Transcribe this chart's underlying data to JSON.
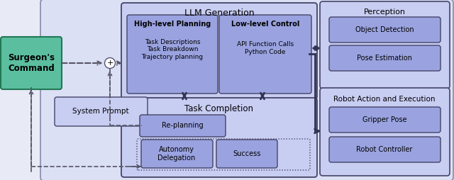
{
  "fig_width": 6.4,
  "fig_height": 2.54,
  "dpi": 100,
  "bg_outer": "#e8eaf6",
  "bg_main": "#dce0f5",
  "bg_llm": "#c8cdf2",
  "bg_hlp": "#9aa3e0",
  "bg_llc": "#9aa3e0",
  "bg_task": "#c8cdf2",
  "bg_replanning": "#9aa3e0",
  "bg_autonomy": "#9aa3e0",
  "bg_success": "#9aa3e0",
  "bg_perception": "#c8cdf2",
  "bg_obj_det": "#9aa3e0",
  "bg_pose_est": "#9aa3e0",
  "bg_robot_action": "#c8cdf2",
  "bg_gripper": "#9aa3e0",
  "bg_robot_ctrl": "#9aa3e0",
  "bg_surgeon": "#5bbf9f",
  "bg_sys_prompt": "#c8cdf2",
  "ec_dark": "#444466",
  "ec_mid": "#666688",
  "ec_surgeon": "#227755",
  "arrow_solid": "#333355",
  "arrow_dash": "#555566",
  "surgeon_text": "Surgeon's\nCommand",
  "sys_prompt_text": "System Prompt",
  "llm_gen_text": "LLM Generation",
  "hlp_title": "High-level Planning",
  "hlp_body": "Task Descriptions\nTask Breakdown\nTrajectory planning",
  "llc_title": "Low-level Control",
  "llc_body": "API Function Calls\nPython Code",
  "task_title": "Task Completion",
  "replanning_text": "Re-planning",
  "autonomy_text": "Autonomy\nDelegation",
  "success_text": "Success",
  "perception_title": "Perception",
  "obj_det_text": "Object Detection",
  "pose_est_text": "Pose Estimation",
  "robot_title": "Robot Action and Execution",
  "gripper_text": "Gripper Pose",
  "robot_ctrl_text": "Robot Controller"
}
